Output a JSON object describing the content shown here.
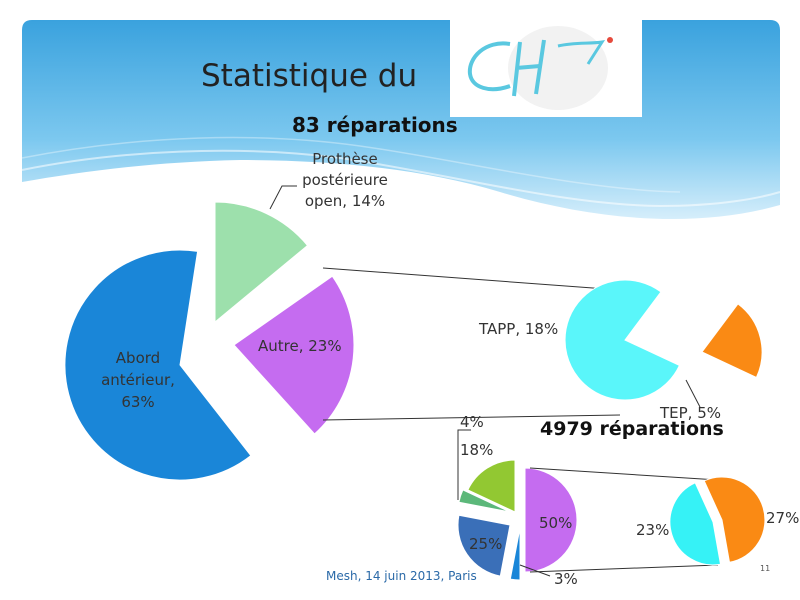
{
  "slide": {
    "title": "Statistique du",
    "footer": "Mesh, 14 juin 2013, Paris",
    "page_number": "11"
  },
  "logo": {
    "text": "CH"
  },
  "chart_data": [
    {
      "type": "pie",
      "title": "83 réparations",
      "slices": [
        {
          "label": "Abord antérieur",
          "value": 63,
          "display": "63%",
          "color": "#1a86d8"
        },
        {
          "label": "Prothèse postérieure open",
          "value": 14,
          "display": "14%",
          "color": "#9de0ac"
        },
        {
          "label": "Autre",
          "value": 23,
          "display": "23%",
          "color": "#c56cf0"
        }
      ],
      "breakdown_of": "Autre",
      "breakdown": [
        {
          "label": "TAPP",
          "value": 18,
          "display": "18%",
          "color": "#5af6fa"
        },
        {
          "label": "TEP",
          "value": 5,
          "display": "5%",
          "color": "#fa8a14"
        }
      ]
    },
    {
      "type": "pie",
      "title": "4979 réparations",
      "slices": [
        {
          "value": 50,
          "display": "50%",
          "color": "#c56cf0"
        },
        {
          "value": 3,
          "display": "3%",
          "color": "#1a86d8"
        },
        {
          "value": 25,
          "display": "25%",
          "color": "#3a6fb8"
        },
        {
          "value": 4,
          "display": "4%",
          "color": "#5cb87a"
        },
        {
          "value": 18,
          "display": "18%",
          "color": "#92c832"
        }
      ],
      "breakdown_of": "50%",
      "breakdown": [
        {
          "value": 23,
          "display": "23%",
          "color": "#36f2f6"
        },
        {
          "value": 27,
          "display": "27%",
          "color": "#fa8a14"
        }
      ]
    }
  ],
  "labels": {
    "abord_line1": "Abord",
    "abord_line2": "antérieur,",
    "abord_line3": "63%",
    "prothese_line1": "Prothèse",
    "prothese_line2": "postérieure",
    "prothese_line3": "open, 14%",
    "autre": "Autre, 23%",
    "tapp": "TAPP, 18%",
    "tep": "TEP, 5%",
    "p50": "50%",
    "p3": "3%",
    "p25": "25%",
    "p4": "4%",
    "p18": "18%",
    "p23": "23%",
    "p27": "27%"
  }
}
